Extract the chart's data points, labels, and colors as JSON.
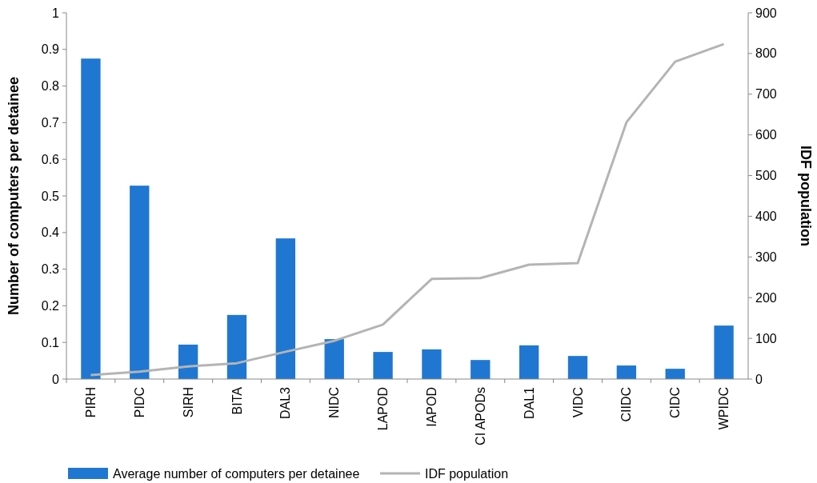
{
  "chart_data": {
    "type": "bar",
    "ylabel": "Number of computers per detainee",
    "y2label": "IDF population",
    "categories": [
      "PIRH",
      "PIDC",
      "SIRH",
      "BITA",
      "DAL3",
      "NIDC",
      "LAPOD",
      "IAPOD",
      "CI APODs",
      "DAL1",
      "VIDC",
      "CIIDC",
      "CIDC",
      "WPIDC"
    ],
    "series": [
      {
        "name": "Average number of computers per detainee",
        "color": "#1f77d2",
        "values": [
          0.875,
          0.528,
          0.094,
          0.175,
          0.384,
          0.109,
          0.074,
          0.081,
          0.052,
          0.092,
          0.063,
          0.037,
          0.028,
          0.146
        ]
      },
      {
        "name": "IDF population",
        "type": "line",
        "axis": "y2",
        "color": "#b4b4b4",
        "values": [
          10,
          18,
          31,
          39,
          67,
          94,
          134,
          246,
          248,
          281,
          285,
          631,
          780,
          823
        ]
      }
    ],
    "ylim": [
      0,
      1
    ],
    "yticks": [
      0,
      {
        "value": 0.1,
        "label": "0.1"
      },
      {
        "value": 0.2,
        "label": "0.2"
      },
      {
        "value": 0.3,
        "label": "0.3"
      },
      {
        "value": 0.4,
        "label": "0.4"
      },
      {
        "value": 0.5,
        "label": "0.5"
      },
      {
        "value": 0.6,
        "label": "0.6"
      },
      {
        "value": 0.7,
        "label": "0.7"
      },
      {
        "value": 0.8,
        "label": "0.8"
      },
      {
        "value": 0.9,
        "label": "0.9"
      },
      1
    ],
    "y2lim": [
      0,
      900
    ],
    "y2ticks": [
      0,
      100,
      200,
      300,
      400,
      500,
      600,
      700,
      800,
      900
    ],
    "legend": "bottom",
    "marker": "none",
    "line_style": "solid"
  }
}
